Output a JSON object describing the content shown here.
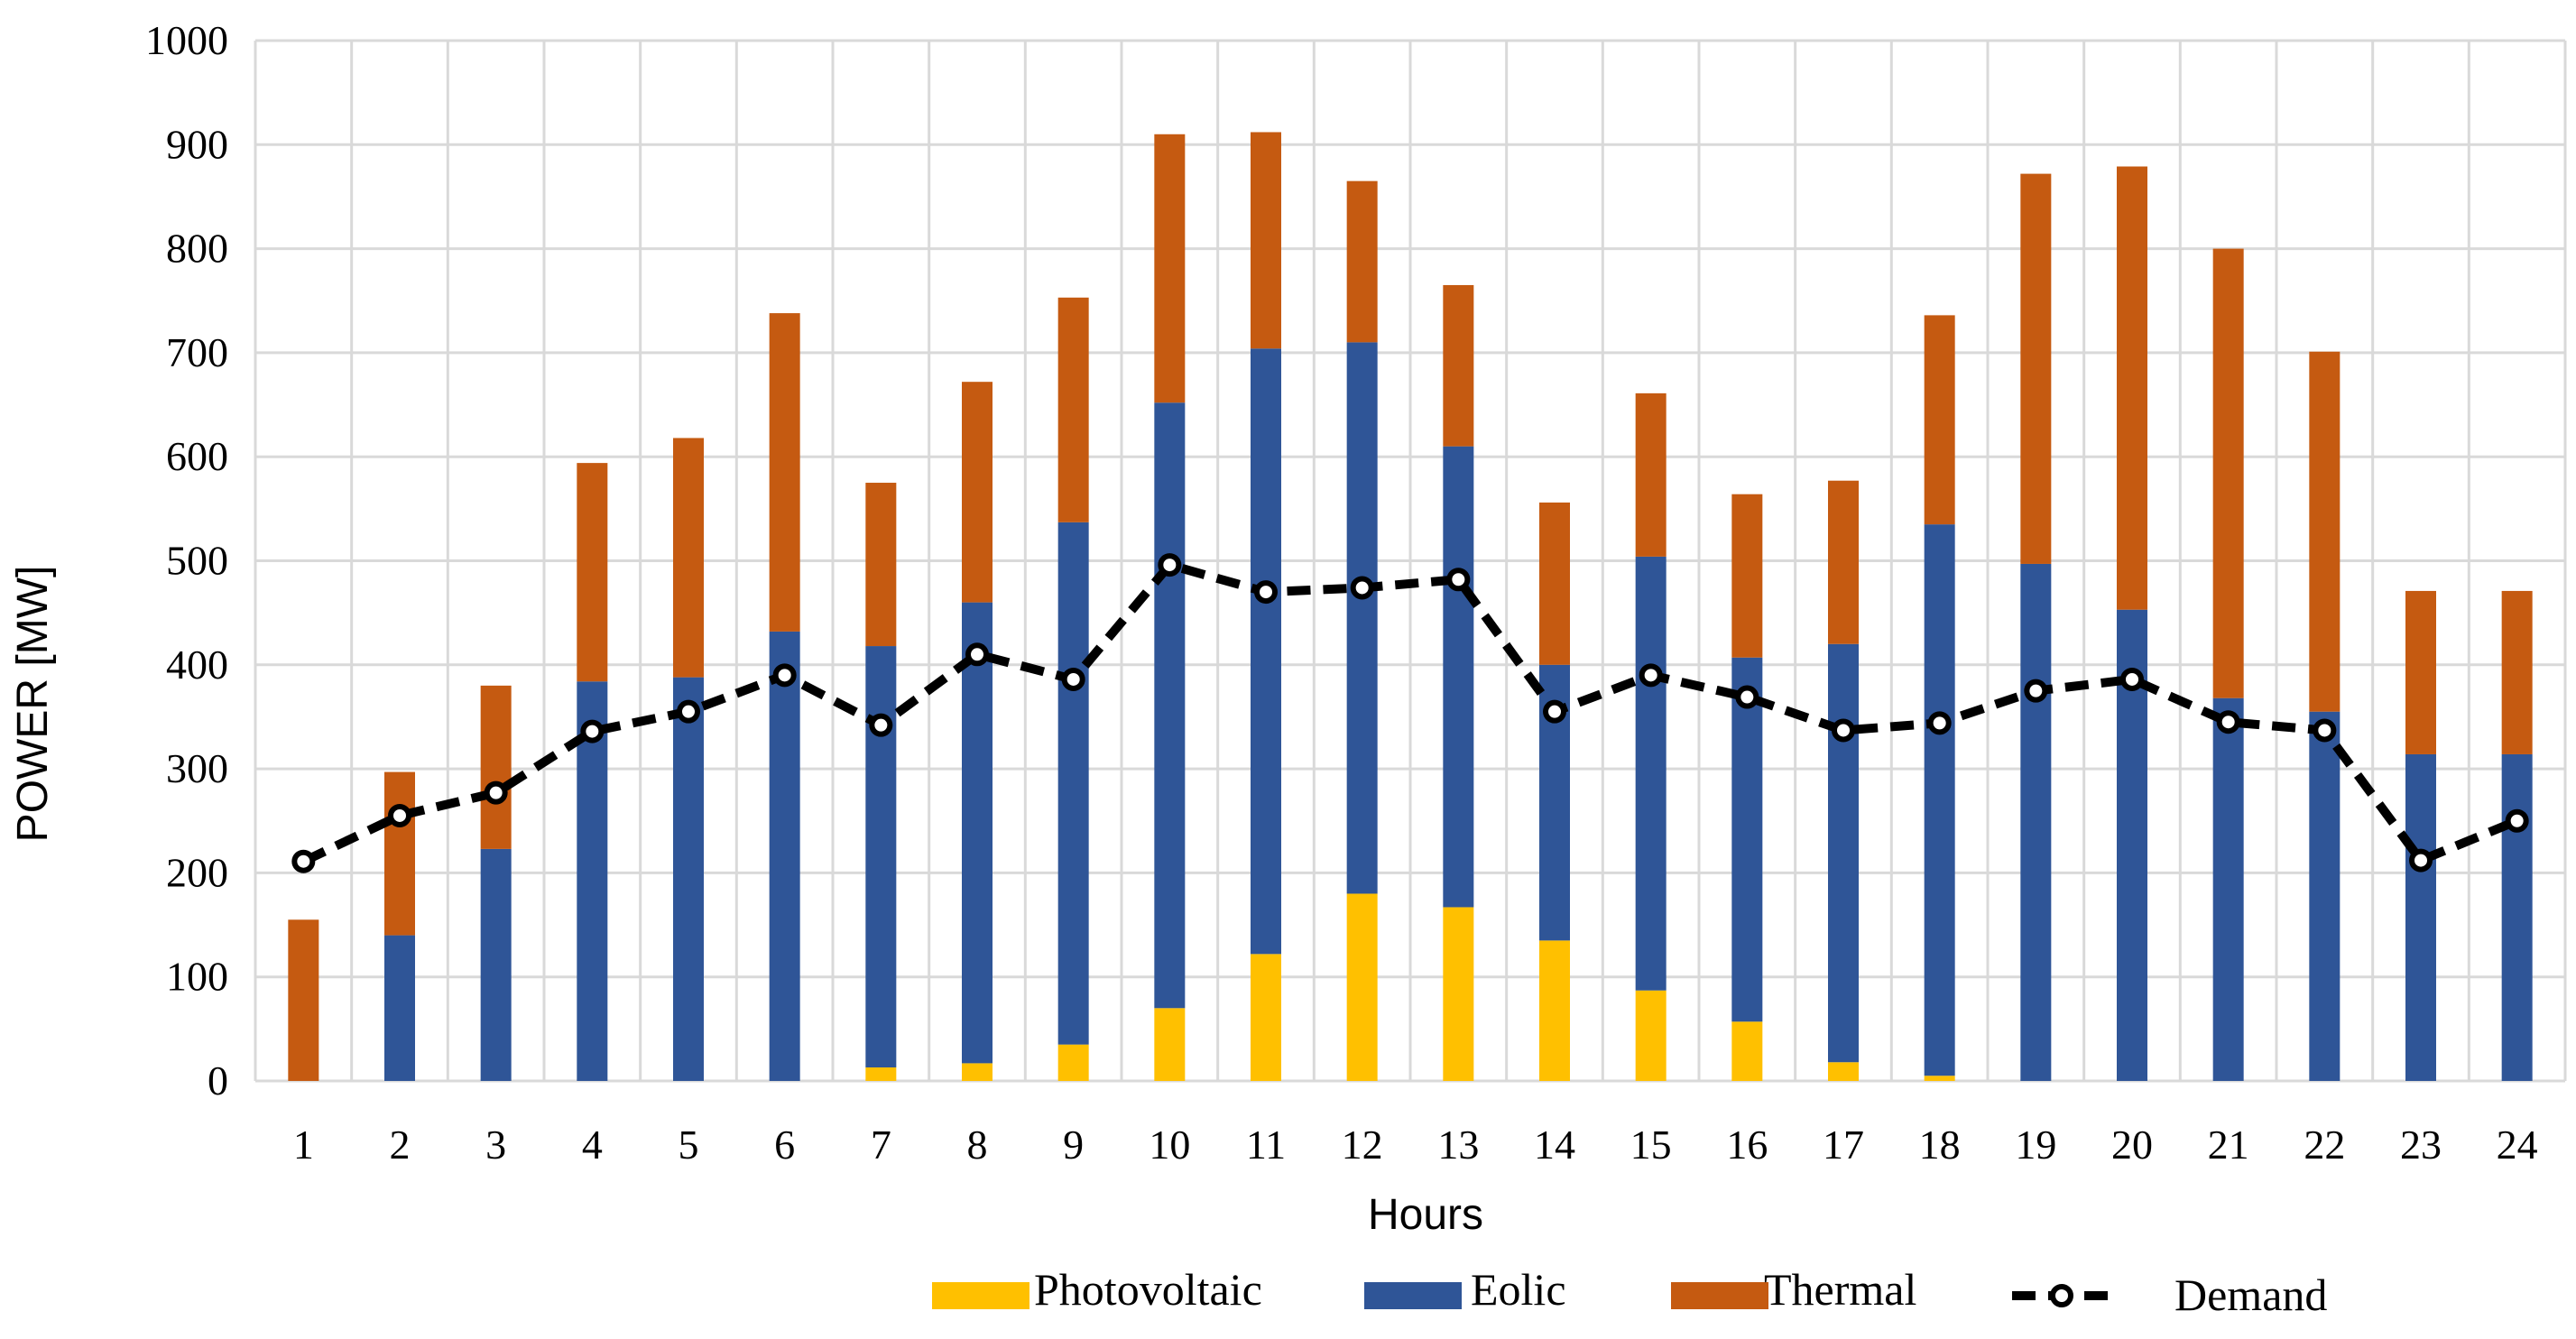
{
  "chart_data": {
    "type": "bar",
    "stacked": true,
    "title": "",
    "xlabel": "Hours",
    "ylabel": "POWER [MW]",
    "ylim": [
      0,
      1000
    ],
    "yticks": [
      "0",
      "100",
      "200",
      "300",
      "400",
      "500",
      "600",
      "700",
      "800",
      "900",
      "1000"
    ],
    "grid": true,
    "legend_position": "bottom",
    "categories": [
      "1",
      "2",
      "3",
      "4",
      "5",
      "6",
      "7",
      "8",
      "9",
      "10",
      "11",
      "12",
      "13",
      "14",
      "15",
      "16",
      "17",
      "18",
      "19",
      "20",
      "21",
      "22",
      "23",
      "24"
    ],
    "series": [
      {
        "name": "Photovoltaic",
        "kind": "bar",
        "color": "#ffc000",
        "values": [
          0,
          0,
          0,
          0,
          0,
          0,
          13,
          17,
          35,
          70,
          122,
          180,
          167,
          135,
          87,
          57,
          18,
          5,
          0,
          0,
          0,
          0,
          0,
          0
        ]
      },
      {
        "name": "Eolic",
        "kind": "bar",
        "color": "#2f5597",
        "values": [
          0,
          140,
          223,
          384,
          388,
          432,
          405,
          443,
          502,
          582,
          582,
          530,
          443,
          265,
          417,
          350,
          402,
          530,
          497,
          453,
          368,
          355,
          314,
          314
        ]
      },
      {
        "name": "Thermal",
        "kind": "bar",
        "color": "#c55a11",
        "values": [
          155,
          157,
          157,
          210,
          230,
          306,
          157,
          212,
          216,
          258,
          208,
          155,
          155,
          156,
          157,
          157,
          157,
          201,
          375,
          426,
          432,
          346,
          157,
          157
        ]
      },
      {
        "name": "Demand",
        "kind": "line",
        "color": "#000000",
        "values": [
          211,
          255,
          277,
          336,
          355,
          390,
          342,
          410,
          386,
          496,
          470,
          474,
          482,
          355,
          390,
          369,
          337,
          344,
          375,
          386,
          345,
          337,
          212,
          250
        ]
      }
    ]
  }
}
